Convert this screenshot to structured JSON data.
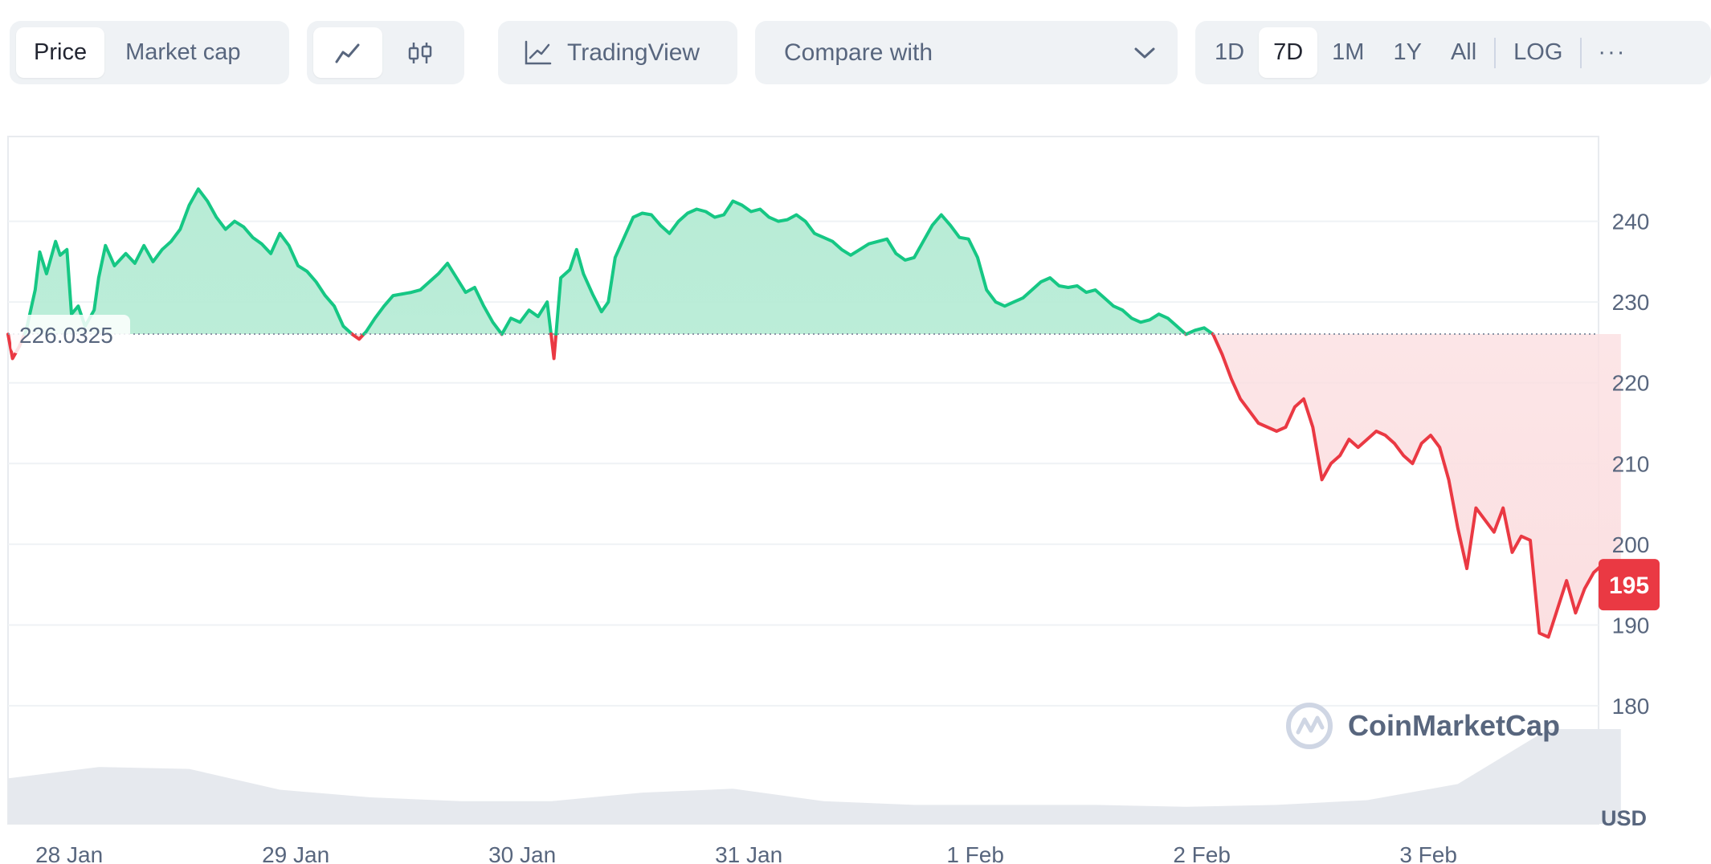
{
  "toolbar": {
    "view_tabs": [
      "Price",
      "Market cap"
    ],
    "active_view": "Price",
    "chart_type_icons": [
      "line-chart-icon",
      "candlestick-icon"
    ],
    "trading_view_label": "TradingView",
    "compare_placeholder": "Compare with",
    "ranges": [
      "1D",
      "7D",
      "1M",
      "1Y",
      "All"
    ],
    "active_range": "7D",
    "log_label": "LOG",
    "more_label": "···"
  },
  "colors": {
    "up": "#16c784",
    "down": "#ea3943",
    "up_fill": "#b8ecd6",
    "down_fill": "#fbdfe1",
    "grid": "#eff2f5",
    "text": "#58667e",
    "volume": "#e6e9ee"
  },
  "watermark": "CoinMarketCap",
  "chart_data": {
    "type": "line",
    "baseline": 226.0325,
    "baseline_label": "226.0325",
    "current_value": 195,
    "current_label": "195",
    "currency_label": "USD",
    "y_ticks": [
      240,
      230,
      220,
      210,
      200,
      190,
      180
    ],
    "ylim": [
      178.5,
      250.5
    ],
    "x_ticks": [
      "28 Jan",
      "29 Jan",
      "30 Jan",
      "31 Jan",
      "1 Feb",
      "2 Feb",
      "3 Feb"
    ],
    "x_tick_positions": [
      0.27,
      1.27,
      2.27,
      3.27,
      4.27,
      5.27,
      6.27
    ],
    "xlim": [
      0,
      7.0
    ],
    "grid": true,
    "series": [
      {
        "values": [
          [
            0.0,
            226.0
          ],
          [
            0.02,
            223.0
          ],
          [
            0.05,
            224.5
          ],
          [
            0.08,
            226.5
          ],
          [
            0.12,
            231.5
          ],
          [
            0.14,
            236.2
          ],
          [
            0.17,
            233.5
          ],
          [
            0.21,
            237.5
          ],
          [
            0.23,
            235.8
          ],
          [
            0.26,
            236.5
          ],
          [
            0.28,
            228.5
          ],
          [
            0.31,
            229.5
          ],
          [
            0.34,
            227.0
          ],
          [
            0.38,
            229.0
          ],
          [
            0.4,
            233.0
          ],
          [
            0.43,
            237.0
          ],
          [
            0.47,
            234.5
          ],
          [
            0.52,
            236.0
          ],
          [
            0.56,
            234.8
          ],
          [
            0.6,
            237.0
          ],
          [
            0.64,
            235.0
          ],
          [
            0.68,
            236.5
          ],
          [
            0.72,
            237.5
          ],
          [
            0.76,
            239.0
          ],
          [
            0.8,
            242.0
          ],
          [
            0.84,
            244.0
          ],
          [
            0.88,
            242.5
          ],
          [
            0.92,
            240.5
          ],
          [
            0.96,
            239.0
          ],
          [
            1.0,
            240.0
          ],
          [
            1.04,
            239.3
          ],
          [
            1.08,
            238.0
          ],
          [
            1.12,
            237.2
          ],
          [
            1.16,
            236.0
          ],
          [
            1.2,
            238.5
          ],
          [
            1.24,
            237.0
          ],
          [
            1.28,
            234.5
          ],
          [
            1.32,
            233.8
          ],
          [
            1.36,
            232.5
          ],
          [
            1.4,
            230.8
          ],
          [
            1.44,
            229.5
          ],
          [
            1.48,
            227.0
          ],
          [
            1.52,
            226.0
          ],
          [
            1.55,
            225.4
          ],
          [
            1.58,
            226.3
          ],
          [
            1.62,
            228.0
          ],
          [
            1.66,
            229.5
          ],
          [
            1.7,
            230.8
          ],
          [
            1.74,
            231.0
          ],
          [
            1.78,
            231.2
          ],
          [
            1.82,
            231.5
          ],
          [
            1.86,
            232.5
          ],
          [
            1.9,
            233.5
          ],
          [
            1.94,
            234.8
          ],
          [
            1.98,
            233.0
          ],
          [
            2.02,
            231.2
          ],
          [
            2.06,
            231.8
          ],
          [
            2.1,
            229.5
          ],
          [
            2.14,
            227.5
          ],
          [
            2.18,
            226.0
          ],
          [
            2.22,
            228.0
          ],
          [
            2.26,
            227.5
          ],
          [
            2.3,
            229.0
          ],
          [
            2.34,
            228.2
          ],
          [
            2.38,
            230.0
          ],
          [
            2.41,
            223.0
          ],
          [
            2.44,
            233.0
          ],
          [
            2.48,
            234.0
          ],
          [
            2.51,
            236.5
          ],
          [
            2.54,
            233.5
          ],
          [
            2.58,
            231.0
          ],
          [
            2.62,
            228.8
          ],
          [
            2.65,
            230.0
          ],
          [
            2.68,
            235.5
          ],
          [
            2.72,
            238.0
          ],
          [
            2.76,
            240.5
          ],
          [
            2.8,
            241.0
          ],
          [
            2.84,
            240.8
          ],
          [
            2.88,
            239.5
          ],
          [
            2.92,
            238.5
          ],
          [
            2.96,
            240.0
          ],
          [
            3.0,
            241.0
          ],
          [
            3.04,
            241.5
          ],
          [
            3.08,
            241.2
          ],
          [
            3.12,
            240.5
          ],
          [
            3.16,
            240.8
          ],
          [
            3.2,
            242.5
          ],
          [
            3.24,
            242.0
          ],
          [
            3.28,
            241.2
          ],
          [
            3.32,
            241.5
          ],
          [
            3.36,
            240.5
          ],
          [
            3.4,
            240.0
          ],
          [
            3.44,
            240.2
          ],
          [
            3.48,
            240.8
          ],
          [
            3.52,
            240.0
          ],
          [
            3.56,
            238.5
          ],
          [
            3.6,
            238.0
          ],
          [
            3.64,
            237.5
          ],
          [
            3.68,
            236.5
          ],
          [
            3.72,
            235.8
          ],
          [
            3.76,
            236.5
          ],
          [
            3.8,
            237.2
          ],
          [
            3.84,
            237.5
          ],
          [
            3.88,
            237.8
          ],
          [
            3.92,
            236.0
          ],
          [
            3.96,
            235.2
          ],
          [
            4.0,
            235.5
          ],
          [
            4.04,
            237.5
          ],
          [
            4.08,
            239.5
          ],
          [
            4.12,
            240.8
          ],
          [
            4.16,
            239.5
          ],
          [
            4.2,
            238.0
          ],
          [
            4.24,
            237.8
          ],
          [
            4.28,
            235.5
          ],
          [
            4.32,
            231.5
          ],
          [
            4.36,
            230.0
          ],
          [
            4.4,
            229.5
          ],
          [
            4.44,
            230.0
          ],
          [
            4.48,
            230.5
          ],
          [
            4.52,
            231.5
          ],
          [
            4.56,
            232.5
          ],
          [
            4.6,
            233.0
          ],
          [
            4.64,
            232.0
          ],
          [
            4.68,
            231.8
          ],
          [
            4.72,
            232.0
          ],
          [
            4.76,
            231.2
          ],
          [
            4.8,
            231.5
          ],
          [
            4.84,
            230.5
          ],
          [
            4.88,
            229.5
          ],
          [
            4.92,
            229.0
          ],
          [
            4.96,
            228.0
          ],
          [
            5.0,
            227.5
          ],
          [
            5.04,
            227.8
          ],
          [
            5.08,
            228.5
          ],
          [
            5.12,
            228.0
          ],
          [
            5.16,
            227.0
          ],
          [
            5.2,
            226.0
          ],
          [
            5.24,
            226.5
          ],
          [
            5.28,
            226.8
          ],
          [
            5.32,
            226.0
          ],
          [
            5.36,
            223.5
          ],
          [
            5.4,
            220.5
          ],
          [
            5.44,
            218.0
          ],
          [
            5.48,
            216.5
          ],
          [
            5.52,
            215.0
          ],
          [
            5.56,
            214.5
          ],
          [
            5.6,
            214.0
          ],
          [
            5.64,
            214.5
          ],
          [
            5.68,
            217.0
          ],
          [
            5.72,
            218.0
          ],
          [
            5.76,
            214.5
          ],
          [
            5.8,
            208.0
          ],
          [
            5.84,
            210.0
          ],
          [
            5.88,
            211.0
          ],
          [
            5.92,
            213.0
          ],
          [
            5.96,
            212.0
          ],
          [
            6.0,
            213.0
          ],
          [
            6.04,
            214.0
          ],
          [
            6.08,
            213.5
          ],
          [
            6.12,
            212.5
          ],
          [
            6.16,
            211.0
          ],
          [
            6.2,
            210.0
          ],
          [
            6.24,
            212.5
          ],
          [
            6.28,
            213.5
          ],
          [
            6.32,
            212.0
          ],
          [
            6.36,
            208.0
          ],
          [
            6.4,
            202.0
          ],
          [
            6.44,
            197.0
          ],
          [
            6.48,
            204.5
          ],
          [
            6.52,
            203.0
          ],
          [
            6.56,
            201.5
          ],
          [
            6.6,
            204.5
          ],
          [
            6.64,
            199.0
          ],
          [
            6.68,
            201.0
          ],
          [
            6.72,
            200.5
          ],
          [
            6.76,
            189.0
          ],
          [
            6.8,
            188.5
          ],
          [
            6.84,
            192.0
          ],
          [
            6.88,
            195.5
          ],
          [
            6.92,
            191.5
          ],
          [
            6.96,
            194.5
          ],
          [
            7.0,
            196.5
          ],
          [
            7.04,
            197.5
          ],
          [
            7.08,
            196.5
          ],
          [
            7.12,
            195.0
          ]
        ]
      }
    ],
    "volume": {
      "values": [
        [
          0.0,
          0.48
        ],
        [
          0.4,
          0.6
        ],
        [
          0.8,
          0.58
        ],
        [
          1.2,
          0.36
        ],
        [
          1.6,
          0.28
        ],
        [
          2.0,
          0.24
        ],
        [
          2.4,
          0.24
        ],
        [
          2.8,
          0.33
        ],
        [
          3.2,
          0.37
        ],
        [
          3.6,
          0.24
        ],
        [
          4.0,
          0.2
        ],
        [
          4.4,
          0.2
        ],
        [
          4.8,
          0.2
        ],
        [
          5.2,
          0.18
        ],
        [
          5.6,
          0.2
        ],
        [
          6.0,
          0.25
        ],
        [
          6.4,
          0.42
        ],
        [
          6.8,
          1.0
        ],
        [
          7.12,
          1.0
        ]
      ]
    }
  }
}
